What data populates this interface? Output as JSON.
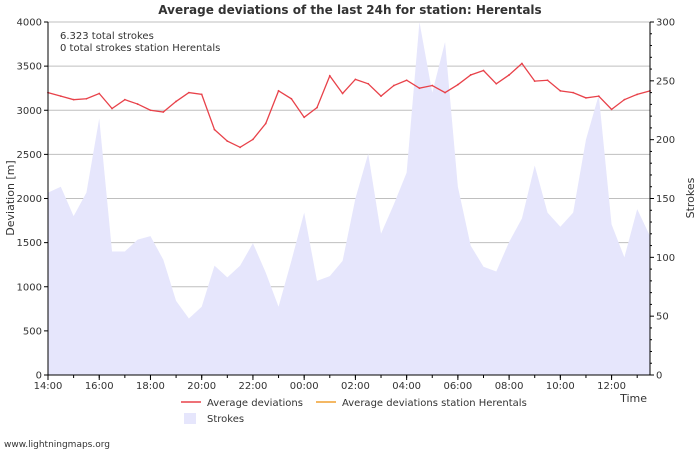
{
  "chart_data": {
    "type": "line",
    "title": "Average deviations of the last 24h for station: Herentals",
    "info_lines": [
      "6.323 total strokes",
      "0 total strokes station Herentals"
    ],
    "x_label": "Time",
    "y_left_label": "Deviation  [m]",
    "y_right_label": "Strokes",
    "y_left_range": [
      0,
      4000
    ],
    "y_right_range": [
      0,
      300
    ],
    "y_left_ticks": [
      0,
      500,
      1000,
      1500,
      2000,
      2500,
      3000,
      3500,
      4000
    ],
    "y_right_ticks": [
      0,
      50,
      100,
      150,
      200,
      250,
      300
    ],
    "x_range": [
      0,
      23.5
    ],
    "x_ticks": [
      {
        "pos": 0,
        "label": "14:00"
      },
      {
        "pos": 2,
        "label": "16:00"
      },
      {
        "pos": 4,
        "label": "18:00"
      },
      {
        "pos": 6,
        "label": "20:00"
      },
      {
        "pos": 8,
        "label": "22:00"
      },
      {
        "pos": 10,
        "label": "00:00"
      },
      {
        "pos": 12,
        "label": "02:00"
      },
      {
        "pos": 14,
        "label": "04:00"
      },
      {
        "pos": 16,
        "label": "06:00"
      },
      {
        "pos": 18,
        "label": "08:00"
      },
      {
        "pos": 20,
        "label": "10:00"
      },
      {
        "pos": 22,
        "label": "12:00"
      }
    ],
    "series": [
      {
        "name": "Average deviations",
        "kind": "line",
        "axis": "left",
        "color": "#e8424a",
        "x": [
          0,
          0.5,
          1,
          1.5,
          2,
          2.5,
          3,
          3.5,
          4,
          4.5,
          5,
          5.5,
          6,
          6.5,
          7,
          7.5,
          8,
          8.5,
          9,
          9.5,
          10,
          10.5,
          11,
          11.5,
          12,
          12.5,
          13,
          13.5,
          14,
          14.5,
          15,
          15.5,
          16,
          16.5,
          17,
          17.5,
          18,
          18.5,
          19,
          19.5,
          20,
          20.5,
          21,
          21.5,
          22,
          22.5,
          23,
          23.5
        ],
        "y": [
          3200,
          3160,
          3120,
          3130,
          3190,
          3020,
          3120,
          3070,
          3000,
          2980,
          3100,
          3200,
          3180,
          2780,
          2650,
          2580,
          2670,
          2850,
          3220,
          3130,
          2920,
          3030,
          3390,
          3190,
          3350,
          3300,
          3160,
          3280,
          3340,
          3250,
          3280,
          3200,
          3290,
          3400,
          3450,
          3300,
          3400,
          3530,
          3330,
          3340,
          3220,
          3200,
          3140,
          3160,
          3010,
          3120,
          3180,
          3220
        ]
      },
      {
        "name": "Average deviations station Herentals",
        "kind": "line",
        "axis": "left",
        "color": "#f0a030",
        "x": [],
        "y": []
      },
      {
        "name": "Strokes",
        "kind": "area",
        "axis": "right",
        "color": "#e6e6fc",
        "x": [
          0,
          0.5,
          1,
          1.5,
          2,
          2.5,
          3,
          3.5,
          4,
          4.5,
          5,
          5.5,
          6,
          6.5,
          7,
          7.5,
          8,
          8.5,
          9,
          9.5,
          10,
          10.5,
          11,
          11.5,
          12,
          12.5,
          13,
          13.5,
          14,
          14.5,
          15,
          15.5,
          16,
          16.5,
          17,
          17.5,
          18,
          18.5,
          19,
          19.5,
          20,
          20.5,
          21,
          21.5,
          22,
          22.5,
          23,
          23.5
        ],
        "y": [
          155,
          160,
          135,
          155,
          218,
          105,
          105,
          115,
          118,
          98,
          63,
          48,
          58,
          93,
          83,
          93,
          112,
          87,
          58,
          97,
          138,
          80,
          84,
          97,
          150,
          188,
          120,
          145,
          172,
          300,
          240,
          283,
          160,
          110,
          92,
          88,
          113,
          133,
          178,
          138,
          126,
          138,
          200,
          238,
          128,
          100,
          141,
          118
        ]
      }
    ],
    "legend": [
      "Average deviations",
      "Average deviations station Herentals",
      "Strokes"
    ],
    "legend_position": "bottom"
  },
  "watermark": "www.lightningmaps.org",
  "colors": {
    "background": "#ffffff",
    "grid": "#bfbfbf",
    "axis": "#000000",
    "text": "#333333"
  }
}
